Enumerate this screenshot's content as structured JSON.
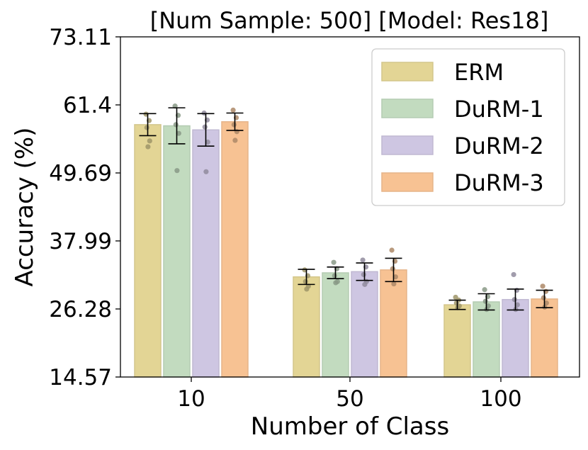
{
  "chart_data": {
    "type": "bar",
    "title": "[Num Sample: 500]  [Model: Res18]",
    "xlabel": "Number of Class",
    "ylabel": "Accuracy (%)",
    "categories": [
      "10",
      "50",
      "100"
    ],
    "yticks": [
      "14.57",
      "26.28",
      "37.99",
      "49.69",
      "61.4",
      "73.11"
    ],
    "ylim": [
      14.57,
      73.11
    ],
    "grid": false,
    "legend_position": "top-right",
    "series": [
      {
        "name": "ERM",
        "color": "#e3d595",
        "values": [
          58.0,
          31.8,
          27.0
        ],
        "error": [
          1.9,
          1.3,
          0.8
        ],
        "points": [
          [
            59.8,
            58.7,
            57.5,
            55.2,
            54.2
          ],
          [
            33.0,
            32.0,
            31.0,
            30.2,
            29.7
          ],
          [
            28.3,
            27.8,
            27.3,
            26.8,
            26.5
          ]
        ]
      },
      {
        "name": "DuRM-1",
        "color": "#c2dbbf",
        "values": [
          57.8,
          32.5,
          27.5
        ],
        "error": [
          3.1,
          1.0,
          1.4
        ],
        "points": [
          [
            61.2,
            59.6,
            58.0,
            56.5,
            50.1
          ],
          [
            34.3,
            33.2,
            32.0,
            31.0,
            30.8
          ],
          [
            29.6,
            28.4,
            27.6,
            26.8,
            26.2
          ]
        ]
      },
      {
        "name": "DuRM-2",
        "color": "#cec6e2",
        "values": [
          57.1,
          32.7,
          27.9
        ],
        "error": [
          2.8,
          1.5,
          1.8
        ],
        "points": [
          [
            60.0,
            58.8,
            57.6,
            55.0,
            49.9
          ],
          [
            34.7,
            33.5,
            32.2,
            31.0,
            30.5
          ],
          [
            32.2,
            29.5,
            27.9,
            27.0,
            26.2
          ]
        ]
      },
      {
        "name": "DuRM-3",
        "color": "#f7c293",
        "values": [
          58.5,
          33.0,
          28.0
        ],
        "error": [
          1.5,
          2.0,
          1.5
        ],
        "points": [
          [
            60.5,
            59.2,
            58.0,
            56.8,
            55.3
          ],
          [
            36.4,
            34.5,
            33.2,
            31.8,
            30.6
          ],
          [
            30.2,
            29.3,
            28.2,
            27.3,
            26.6
          ]
        ]
      }
    ]
  }
}
